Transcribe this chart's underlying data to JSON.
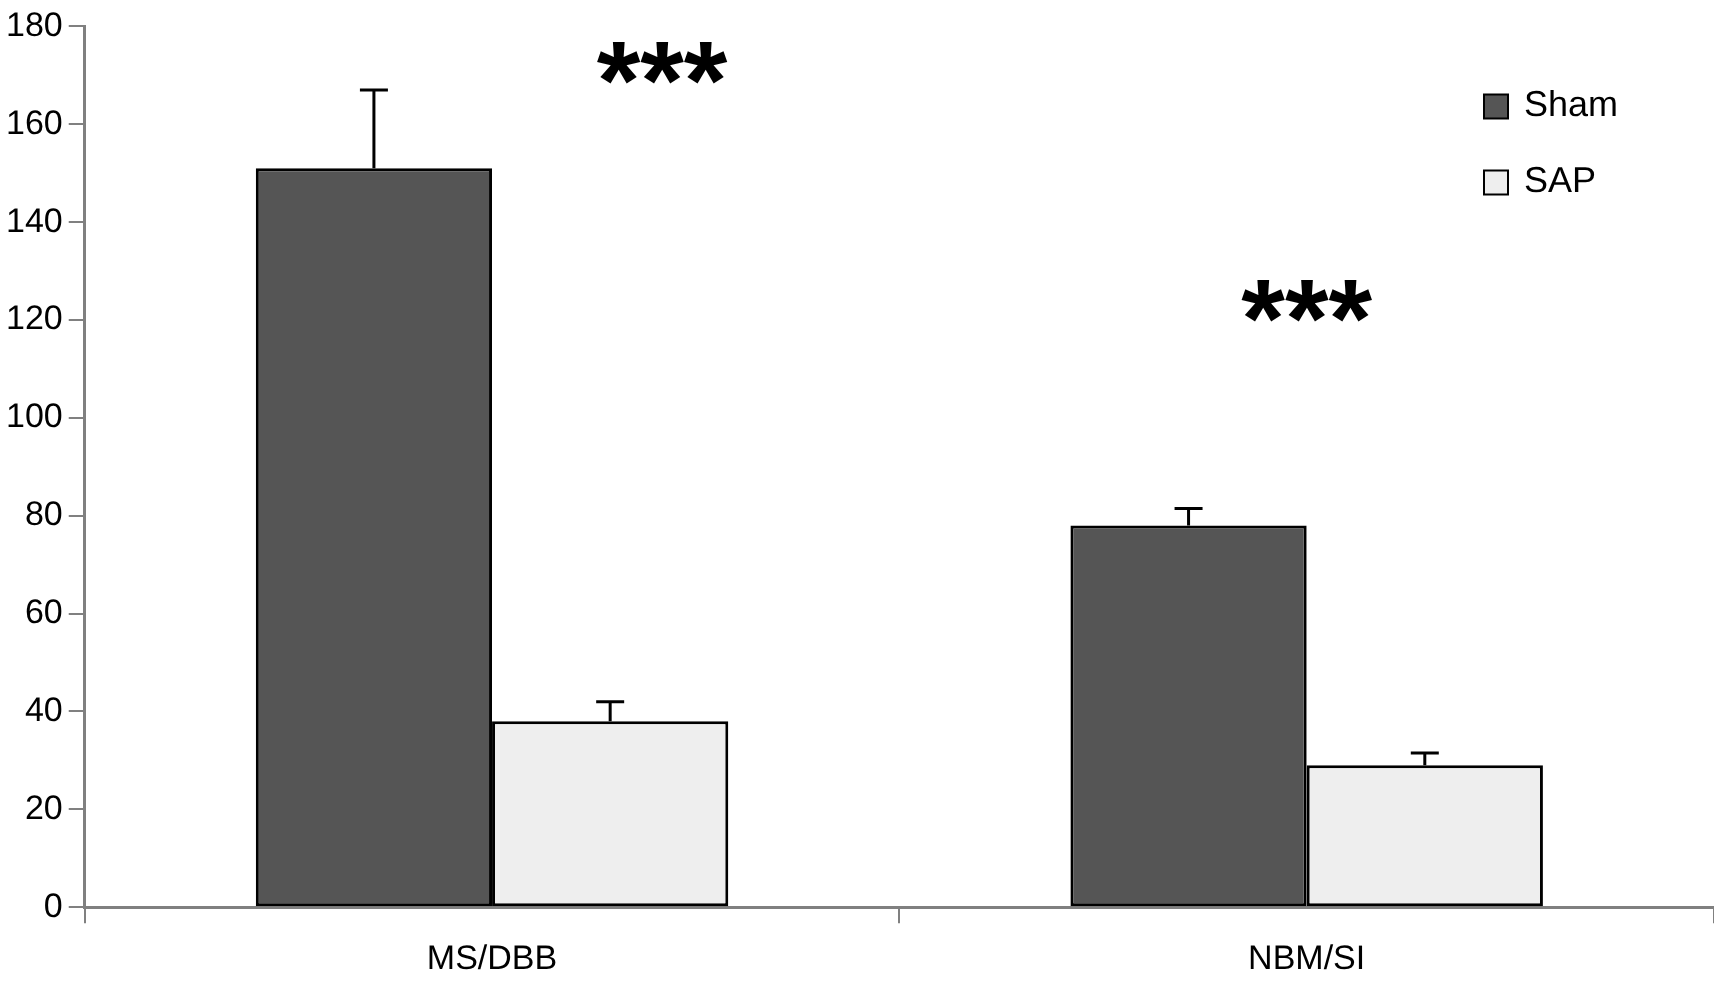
{
  "chart_data": {
    "type": "bar",
    "categories": [
      "MS/DBB",
      "NBM/SI"
    ],
    "series": [
      {
        "name": "Sham",
        "color": "#555555",
        "values": [
          151,
          78
        ],
        "errors": [
          16,
          3.5
        ]
      },
      {
        "name": "SAP",
        "color": "#eeeeee",
        "values": [
          38,
          29
        ],
        "errors": [
          4,
          2.5
        ]
      }
    ],
    "ylim": [
      0,
      180
    ],
    "yticks": [
      0,
      20,
      40,
      60,
      80,
      100,
      120,
      140,
      160,
      180
    ],
    "grid": false,
    "legend": "top right",
    "annotations": [
      "***",
      "***"
    ]
  }
}
